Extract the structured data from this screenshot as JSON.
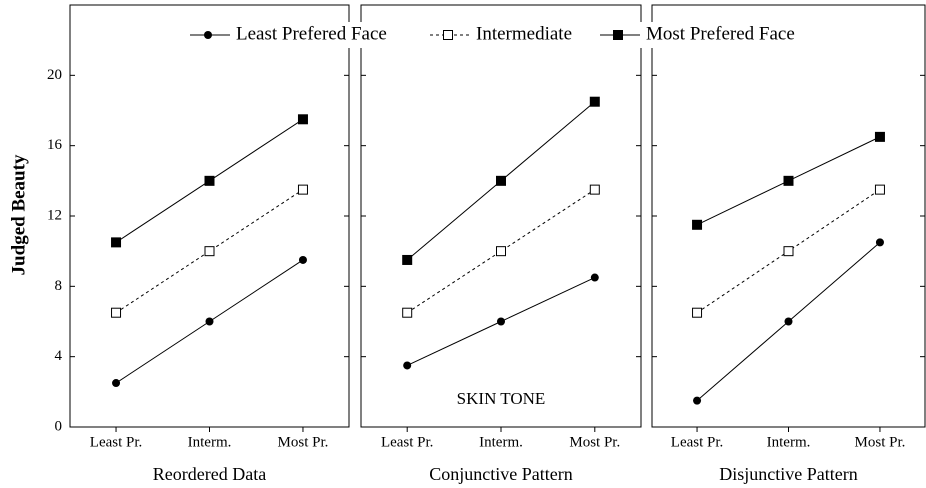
{
  "chart_data": {
    "type": "line",
    "ylabel": "Judged Beauty",
    "ylim": [
      0,
      24
    ],
    "yticks": [
      0,
      4,
      8,
      12,
      16,
      20
    ],
    "categories": [
      "Least Pr.",
      "Interm.",
      "Most Pr."
    ],
    "series": [
      {
        "name": "Least Prefered Face",
        "color": "#000000",
        "marker": "circle",
        "dash": "solid"
      },
      {
        "name": "Intermediate",
        "color": "#000000",
        "marker": "open-square",
        "dash": "dashed"
      },
      {
        "name": "Most Prefered Face",
        "color": "#000000",
        "marker": "square",
        "dash": "solid"
      }
    ],
    "panels": [
      {
        "xlabel": "Reordered Data",
        "values": [
          [
            2.5,
            6,
            9.5
          ],
          [
            6.5,
            10,
            13.5
          ],
          [
            10.5,
            14,
            17.5
          ]
        ]
      },
      {
        "xlabel": "Conjunctive Pattern",
        "annotation": "SKIN TONE",
        "values": [
          [
            3.5,
            6,
            8.5
          ],
          [
            6.5,
            10,
            13.5
          ],
          [
            9.5,
            14,
            18.5
          ]
        ]
      },
      {
        "xlabel": "Disjunctive Pattern",
        "values": [
          [
            1.5,
            6,
            10.5
          ],
          [
            6.5,
            10,
            13.5
          ],
          [
            11.5,
            14,
            16.5
          ]
        ]
      }
    ]
  }
}
